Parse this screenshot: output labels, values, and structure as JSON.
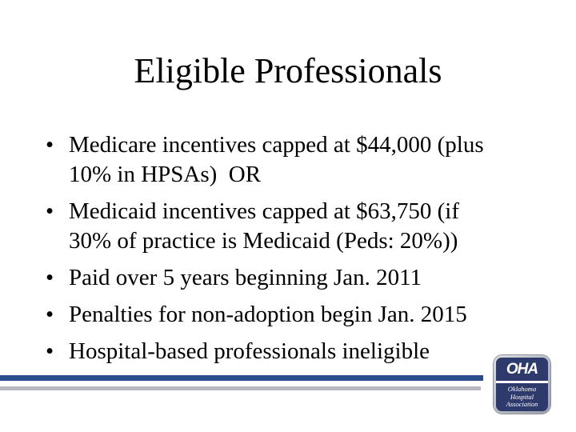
{
  "slide": {
    "title": "Eligible Professionals",
    "bullet_char": "•",
    "bullets": [
      {
        "lines": [
          "Medicare incentives capped at $44,000 (plus",
          "10% in HPSAs)  OR"
        ]
      },
      {
        "lines": [
          "Medicaid incentives capped at $63,750 (if",
          "30% of practice is Medicaid (Peds: 20%))"
        ]
      },
      {
        "lines": [
          "Paid over 5 years beginning Jan. 2011"
        ]
      },
      {
        "lines": [
          "Penalties for non-adoption begin Jan. 2015"
        ]
      },
      {
        "lines": [
          "Hospital-based professionals ineligible"
        ]
      }
    ]
  },
  "footer": {
    "accent_bar_blue_color": "#2b4d8c",
    "accent_bar_gray_color": "#b8babf"
  },
  "logo": {
    "acronym": "OHA",
    "org_lines": [
      "Oklahoma",
      "Hospital",
      "Association"
    ],
    "navy_color": "#2e3a6b",
    "border_silver_color": "#b5b9c1",
    "text_color": "#ffffff"
  }
}
